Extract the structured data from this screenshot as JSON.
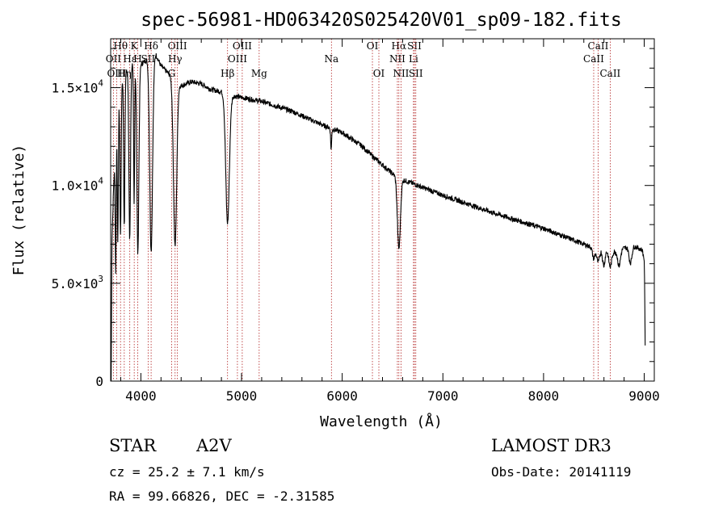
{
  "chart_data": {
    "type": "line",
    "title": "spec-56981-HD063420S025420V01_sp09-182.fits",
    "xlabel": "Wavelength (Å)",
    "ylabel": "Flux (relative)",
    "xlim": [
      3700,
      9100
    ],
    "ylim": [
      0,
      17500
    ],
    "x_ticks": [
      4000,
      5000,
      6000,
      7000,
      8000,
      9000
    ],
    "x_tick_labels": [
      "4000",
      "5000",
      "6000",
      "7000",
      "8000",
      "9000"
    ],
    "y_ticks": [
      0,
      5000,
      10000,
      15000
    ],
    "y_tick_labels": [
      {
        "mant": "0",
        "exp": ""
      },
      {
        "mant": "5.0×10",
        "exp": "3"
      },
      {
        "mant": "1.0×10",
        "exp": "4"
      },
      {
        "mant": "1.5×10",
        "exp": "4"
      }
    ],
    "continuum": [
      [
        3705,
        0
      ],
      [
        3712,
        7000
      ],
      [
        3730,
        10000
      ],
      [
        3760,
        13500
      ],
      [
        3800,
        15200
      ],
      [
        3850,
        15800
      ],
      [
        3900,
        16200
      ],
      [
        3950,
        16300
      ],
      [
        4000,
        16200
      ],
      [
        4050,
        16400
      ],
      [
        4100,
        16600
      ],
      [
        4150,
        16700
      ],
      [
        4200,
        16100
      ],
      [
        4300,
        15600
      ],
      [
        4400,
        15100
      ],
      [
        4500,
        15300
      ],
      [
        4600,
        15200
      ],
      [
        4700,
        14900
      ],
      [
        4800,
        14800
      ],
      [
        4900,
        14600
      ],
      [
        5000,
        14500
      ],
      [
        5200,
        14300
      ],
      [
        5500,
        13800
      ],
      [
        5800,
        13100
      ],
      [
        6000,
        12700
      ],
      [
        6200,
        12000
      ],
      [
        6300,
        11500
      ],
      [
        6500,
        10600
      ],
      [
        6600,
        10300
      ],
      [
        6800,
        9900
      ],
      [
        7000,
        9500
      ],
      [
        7500,
        8600
      ],
      [
        8000,
        7800
      ],
      [
        8300,
        7200
      ],
      [
        8500,
        6800
      ],
      [
        8700,
        6600
      ],
      [
        8800,
        6800
      ],
      [
        8900,
        6900
      ],
      [
        8980,
        6700
      ],
      [
        9000,
        6200
      ],
      [
        9005,
        4500
      ],
      [
        9010,
        1000
      ]
    ],
    "absorption_features": [
      {
        "center": 3750,
        "depth": 0.55,
        "width": 5
      },
      {
        "center": 3771,
        "depth": 0.5,
        "width": 5
      },
      {
        "center": 3798,
        "depth": 0.5,
        "width": 6
      },
      {
        "center": 3835,
        "depth": 0.5,
        "width": 6
      },
      {
        "center": 3889,
        "depth": 0.55,
        "width": 8
      },
      {
        "center": 3933,
        "depth": 0.45,
        "width": 5
      },
      {
        "center": 3970,
        "depth": 0.6,
        "width": 10
      },
      {
        "center": 4102,
        "depth": 0.6,
        "width": 14
      },
      {
        "center": 4340,
        "depth": 0.55,
        "width": 16
      },
      {
        "center": 4861,
        "depth": 0.45,
        "width": 18
      },
      {
        "center": 5890,
        "depth": 0.08,
        "width": 5
      },
      {
        "center": 6563,
        "depth": 0.35,
        "width": 15
      },
      {
        "center": 8498,
        "depth": 0.08,
        "width": 12
      },
      {
        "center": 8542,
        "depth": 0.1,
        "width": 14
      },
      {
        "center": 8598,
        "depth": 0.12,
        "width": 12
      },
      {
        "center": 8662,
        "depth": 0.12,
        "width": 14
      },
      {
        "center": 8750,
        "depth": 0.12,
        "width": 14
      },
      {
        "center": 8863,
        "depth": 0.12,
        "width": 14
      }
    ],
    "line_markers": [
      {
        "name": "Hθ",
        "wavelength": 3798,
        "row": 0
      },
      {
        "name": "OII",
        "wavelength": 3727,
        "row": 1
      },
      {
        "name": "OIII",
        "wavelength": 3760,
        "row": 2
      },
      {
        "name": "K",
        "wavelength": 3934,
        "row": 0
      },
      {
        "name": "Hε",
        "wavelength": 3890,
        "row": 1
      },
      {
        "name": "H",
        "wavelength": 3969,
        "row": 1
      },
      {
        "name": "Hη",
        "wavelength": 3835,
        "row": 2
      },
      {
        "name": "SII",
        "wavelength": 4072,
        "row": 1
      },
      {
        "name": "Hδ",
        "wavelength": 4102,
        "row": 0
      },
      {
        "name": "OIII",
        "wavelength": 4363,
        "row": 0
      },
      {
        "name": "Hγ",
        "wavelength": 4340,
        "row": 1
      },
      {
        "name": "G",
        "wavelength": 4305,
        "row": 2
      },
      {
        "name": "Hβ",
        "wavelength": 4861,
        "row": 2
      },
      {
        "name": "OIII",
        "wavelength": 5007,
        "row": 0
      },
      {
        "name": "OIII",
        "wavelength": 4959,
        "row": 1
      },
      {
        "name": "Mg",
        "wavelength": 5175,
        "row": 2
      },
      {
        "name": "Na",
        "wavelength": 5893,
        "row": 1
      },
      {
        "name": "OI",
        "wavelength": 6300,
        "row": 0
      },
      {
        "name": "OI",
        "wavelength": 6364,
        "row": 2
      },
      {
        "name": "Hα",
        "wavelength": 6563,
        "row": 0
      },
      {
        "name": "NII",
        "wavelength": 6548,
        "row": 1
      },
      {
        "name": "NII",
        "wavelength": 6584,
        "row": 2
      },
      {
        "name": "SII",
        "wavelength": 6717,
        "row": 0
      },
      {
        "name": "Li",
        "wavelength": 6708,
        "row": 1
      },
      {
        "name": "SII",
        "wavelength": 6731,
        "row": 2
      },
      {
        "name": "CaII",
        "wavelength": 8542,
        "row": 0
      },
      {
        "name": "CaII",
        "wavelength": 8498,
        "row": 1
      },
      {
        "name": "CaII",
        "wavelength": 8662,
        "row": 2
      }
    ],
    "colors": {
      "spectrum": "#000000",
      "marker": "#b22222"
    }
  },
  "info": {
    "object_type": "STAR",
    "spectral_class": "A2V",
    "survey": "LAMOST DR3",
    "redshift": "cz = 25.2 ± 7.1 km/s",
    "obs_date": "Obs-Date: 20141119",
    "coords": "RA =  99.66826, DEC =  -2.31585"
  }
}
